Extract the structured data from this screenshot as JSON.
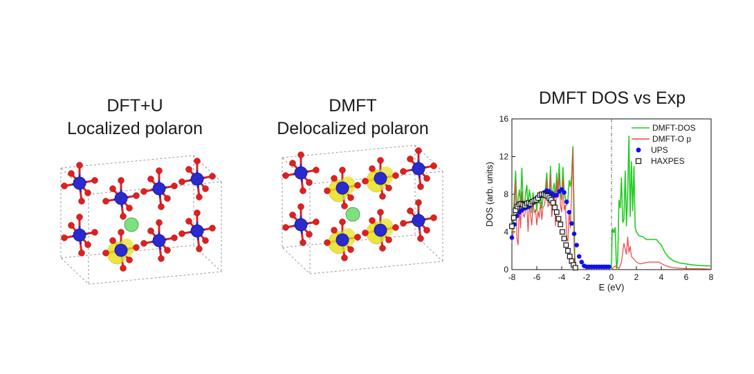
{
  "panels": {
    "left": {
      "line1": "DFT+U",
      "line2": "Localized polaron"
    },
    "mid": {
      "line1": "DMFT",
      "line2": "Delocalized polaron"
    },
    "right": {
      "title": "DMFT DOS vs Exp"
    }
  },
  "colors": {
    "ti_atom": "#2a2ad0",
    "o_atom": "#e02020",
    "la_atom": "#7ee07e",
    "polaron_density": "#e8e020",
    "dmft_dos": "#22cc22",
    "dmft_op": "#ee4444",
    "ups": "#1010ee",
    "haxpes": "#111111"
  },
  "chart_data": {
    "type": "line",
    "xlabel": "E (eV)",
    "ylabel": "DOS (arb. units)",
    "xlim": [
      -8,
      8
    ],
    "ylim": [
      0,
      16
    ],
    "xticks": [
      -8,
      -6,
      -4,
      -2,
      0,
      2,
      4,
      6,
      8
    ],
    "yticks": [
      0,
      4,
      8,
      12,
      16
    ],
    "fermi_line_x": 0,
    "legend_position": "top-right",
    "series": [
      {
        "name": "DMFT-DOS",
        "style": "line",
        "color": "#22cc22",
        "x": [
          -8,
          -7.9,
          -7.8,
          -7.7,
          -7.6,
          -7.5,
          -7.4,
          -7.3,
          -7.2,
          -7.1,
          -7.0,
          -6.9,
          -6.8,
          -6.7,
          -6.6,
          -6.5,
          -6.4,
          -6.3,
          -6.2,
          -6.1,
          -6.0,
          -5.9,
          -5.8,
          -5.7,
          -5.6,
          -5.5,
          -5.4,
          -5.3,
          -5.2,
          -5.1,
          -5.0,
          -4.9,
          -4.8,
          -4.7,
          -4.6,
          -4.5,
          -4.4,
          -4.3,
          -4.2,
          -4.1,
          -4.0,
          -3.9,
          -3.8,
          -3.7,
          -3.6,
          -3.5,
          -3.4,
          -3.3,
          -3.2,
          -3.1,
          -3.0,
          -2.95,
          -2.9,
          -2.8,
          0.0,
          0.05,
          0.1,
          0.2,
          0.3,
          0.4,
          0.5,
          0.6,
          0.7,
          0.8,
          0.9,
          1.0,
          1.1,
          1.2,
          1.3,
          1.4,
          1.5,
          1.6,
          1.7,
          1.8,
          1.9,
          2.0,
          2.2,
          2.5,
          2.8,
          3.0,
          3.3,
          3.6,
          4.0,
          4.3,
          4.6,
          5.0,
          5.5,
          6.0,
          6.5,
          7.0,
          7.5,
          8.0
        ],
        "y": [
          4.0,
          5.5,
          7.8,
          10.5,
          6.0,
          7.5,
          8.5,
          6.8,
          10.8,
          7.0,
          6.5,
          8.0,
          9.0,
          6.6,
          8.5,
          7.6,
          6.0,
          8.2,
          7.1,
          7.6,
          6.2,
          7.8,
          7.0,
          8.2,
          6.5,
          7.6,
          7.9,
          8.6,
          10.3,
          7.6,
          7.8,
          11.0,
          6.8,
          8.5,
          9.2,
          7.6,
          10.3,
          8.1,
          11.3,
          8.2,
          7.4,
          10.9,
          8.3,
          7.6,
          6.8,
          7.4,
          9.5,
          8.8,
          10.0,
          13.1,
          6.0,
          1.5,
          0.5,
          0.0,
          0.0,
          3.8,
          4.4,
          3.9,
          4.5,
          0.0,
          1.2,
          7.4,
          6.5,
          9.8,
          5.0,
          5.3,
          10.5,
          4.6,
          8.2,
          14.2,
          5.6,
          11.5,
          6.2,
          11.0,
          4.5,
          4.0,
          3.6,
          3.5,
          3.2,
          3.2,
          3.2,
          3.2,
          2.6,
          1.8,
          1.3,
          0.9,
          0.7,
          0.6,
          0.5,
          0.45,
          0.4,
          0.4
        ]
      },
      {
        "name": "DMFT-O p",
        "style": "line",
        "color": "#ee4444",
        "x": [
          -8,
          -7.9,
          -7.8,
          -7.7,
          -7.6,
          -7.5,
          -7.4,
          -7.3,
          -7.2,
          -7.1,
          -7.0,
          -6.9,
          -6.8,
          -6.7,
          -6.6,
          -6.5,
          -6.4,
          -6.3,
          -6.2,
          -6.1,
          -6.0,
          -5.9,
          -5.8,
          -5.7,
          -5.6,
          -5.5,
          -5.4,
          -5.3,
          -5.2,
          -5.1,
          -5.0,
          -4.9,
          -4.8,
          -4.7,
          -4.6,
          -4.5,
          -4.4,
          -4.3,
          -4.2,
          -4.1,
          -4.0,
          -3.9,
          -3.8,
          -3.7,
          -3.6,
          -3.5,
          -3.4,
          -3.3,
          -3.2,
          -3.1,
          -3.0,
          -2.95,
          -2.9,
          -2.8,
          0.0,
          0.2,
          0.4,
          0.6,
          0.8,
          1.0,
          1.2,
          1.3,
          1.4,
          1.5,
          1.6,
          1.8,
          2.0,
          2.3,
          2.6,
          3.0,
          3.4,
          3.8,
          4.2,
          4.6,
          5.0,
          5.5,
          6.0,
          7.0,
          8.0
        ],
        "y": [
          2.8,
          3.9,
          6.6,
          9.4,
          3.4,
          2.6,
          7.0,
          4.4,
          8.3,
          5.8,
          5.6,
          6.3,
          7.0,
          4.0,
          7.0,
          5.8,
          4.7,
          7.2,
          6.0,
          6.4,
          4.7,
          6.2,
          5.5,
          7.2,
          5.3,
          6.6,
          6.8,
          7.6,
          9.6,
          6.7,
          6.9,
          10.1,
          5.6,
          6.8,
          8.4,
          4.6,
          9.5,
          7.6,
          10.2,
          6.8,
          6.1,
          9.7,
          6.3,
          6.9,
          3.4,
          3.0,
          6.2,
          4.4,
          8.6,
          12.8,
          2.0,
          0.8,
          0.2,
          0.0,
          0.0,
          0.3,
          0.4,
          0.1,
          0.8,
          2.8,
          1.6,
          3.5,
          1.8,
          2.5,
          1.4,
          1.1,
          0.8,
          0.6,
          0.7,
          0.8,
          0.8,
          0.8,
          0.5,
          0.3,
          0.2,
          0.15,
          0.1,
          0.1,
          0.05
        ]
      },
      {
        "name": "UPS",
        "style": "marker-circle",
        "color": "#1010ee",
        "x": [
          -8.0,
          -7.8,
          -7.6,
          -7.4,
          -7.2,
          -7.0,
          -6.8,
          -6.6,
          -6.4,
          -6.2,
          -6.0,
          -5.8,
          -5.6,
          -5.4,
          -5.2,
          -5.0,
          -4.8,
          -4.6,
          -4.4,
          -4.2,
          -4.0,
          -3.8,
          -3.6,
          -3.4,
          -3.2,
          -3.0,
          -2.8,
          -2.6,
          -2.4,
          -2.2,
          -2.0,
          -1.8,
          -1.6,
          -1.4,
          -1.2,
          -1.0,
          -0.8,
          -0.6,
          -0.4,
          -0.2
        ],
        "y": [
          3.4,
          4.8,
          5.7,
          6.1,
          6.3,
          6.5,
          6.6,
          6.7,
          7.0,
          7.3,
          7.6,
          7.8,
          8.0,
          8.2,
          8.4,
          8.3,
          8.1,
          7.9,
          7.9,
          8.3,
          8.5,
          8.2,
          7.2,
          6.1,
          4.9,
          3.8,
          2.6,
          1.4,
          0.8,
          0.4,
          0.3,
          0.3,
          0.3,
          0.3,
          0.3,
          0.3,
          0.3,
          0.3,
          0.3,
          0.3
        ]
      },
      {
        "name": "HAXPES",
        "style": "marker-square",
        "color": "#111111",
        "x": [
          -8.0,
          -7.85,
          -7.7,
          -7.55,
          -7.4,
          -7.25,
          -7.1,
          -6.95,
          -6.8,
          -6.65,
          -6.5,
          -6.35,
          -6.2,
          -6.05,
          -5.9,
          -5.75,
          -5.6,
          -5.45,
          -5.3,
          -5.15,
          -5.0,
          -4.85,
          -4.7,
          -4.55,
          -4.4,
          -4.25,
          -4.1,
          -3.95,
          -3.8,
          -3.65,
          -3.5,
          -3.35,
          -3.2,
          -3.05,
          -2.9
        ],
        "y": [
          4.6,
          5.5,
          6.3,
          6.7,
          6.9,
          7.0,
          6.9,
          6.8,
          7.0,
          7.1,
          7.0,
          7.2,
          7.3,
          7.4,
          7.6,
          7.9,
          8.0,
          8.0,
          7.9,
          7.8,
          7.6,
          7.4,
          7.1,
          6.6,
          6.1,
          5.4,
          4.8,
          4.0,
          3.3,
          2.6,
          2.0,
          1.4,
          0.9,
          0.5,
          0.2
        ]
      }
    ]
  }
}
